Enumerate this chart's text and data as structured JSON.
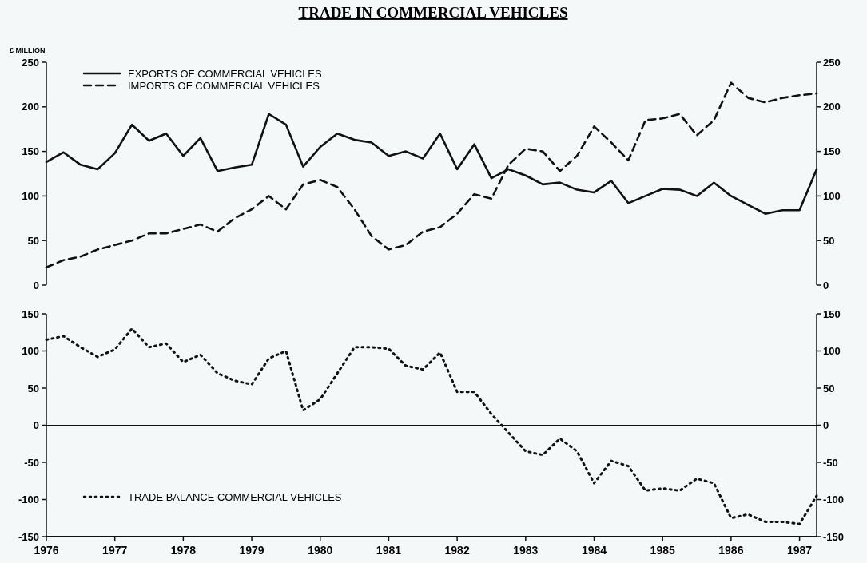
{
  "chart_data": [
    {
      "type": "line",
      "title": "TRADE IN COMMERCIAL VEHICLES",
      "ylabel": "£ MILLION",
      "x": [
        1976,
        1976.25,
        1976.5,
        1976.75,
        1977,
        1977.25,
        1977.5,
        1977.75,
        1978,
        1978.25,
        1978.5,
        1978.75,
        1979,
        1979.25,
        1979.5,
        1979.75,
        1980,
        1980.25,
        1980.5,
        1980.75,
        1981,
        1981.25,
        1981.5,
        1981.75,
        1982,
        1982.25,
        1982.5,
        1982.75,
        1983,
        1983.25,
        1983.5,
        1983.75,
        1984,
        1984.25,
        1984.5,
        1984.75,
        1985,
        1985.25,
        1985.5,
        1985.75,
        1986,
        1986.25,
        1986.5,
        1986.75,
        1987,
        1987.25
      ],
      "series": [
        {
          "name": "EXPORTS OF COMMERCIAL VEHICLES",
          "color": "#111111",
          "line_style": "solid",
          "values": [
            138,
            149,
            135,
            130,
            148,
            180,
            162,
            170,
            145,
            165,
            128,
            132,
            135,
            192,
            180,
            133,
            155,
            170,
            163,
            160,
            145,
            150,
            142,
            170,
            130,
            158,
            120,
            130,
            123,
            113,
            115,
            107,
            104,
            117,
            92,
            100,
            108,
            107,
            100,
            115,
            100,
            90,
            80,
            84,
            84,
            130
          ]
        },
        {
          "name": "IMPORTS OF COMMERCIAL VEHICLES",
          "color": "#111111",
          "line_style": "dashed",
          "values": [
            20,
            28,
            32,
            40,
            45,
            50,
            58,
            58,
            63,
            68,
            60,
            75,
            85,
            100,
            85,
            113,
            118,
            110,
            85,
            55,
            40,
            45,
            60,
            65,
            80,
            102,
            97,
            135,
            153,
            150,
            128,
            145,
            178,
            160,
            140,
            185,
            187,
            192,
            168,
            185,
            227,
            210,
            205,
            210,
            213,
            215
          ]
        }
      ],
      "xlim": [
        1976,
        1987.25
      ],
      "ylim": [
        0,
        250
      ],
      "yticks": [
        0,
        50,
        100,
        150,
        200,
        250
      ],
      "y2lim": [
        0,
        250
      ],
      "y2ticks": [
        0,
        50,
        100,
        150,
        200,
        250
      ],
      "tick_labels": "y",
      "legend": "top left",
      "grid": false
    },
    {
      "type": "line",
      "x": [
        1976,
        1976.25,
        1976.5,
        1976.75,
        1977,
        1977.25,
        1977.5,
        1977.75,
        1978,
        1978.25,
        1978.5,
        1978.75,
        1979,
        1979.25,
        1979.5,
        1979.75,
        1980,
        1980.25,
        1980.5,
        1980.75,
        1981,
        1981.25,
        1981.5,
        1981.75,
        1982,
        1982.25,
        1982.5,
        1982.75,
        1983,
        1983.25,
        1983.5,
        1983.75,
        1984,
        1984.25,
        1984.5,
        1984.75,
        1985,
        1985.25,
        1985.5,
        1985.75,
        1986,
        1986.25,
        1986.5,
        1986.75,
        1987,
        1987.25
      ],
      "series": [
        {
          "name": "TRADE BALANCE COMMERCIAL VEHICLES",
          "color": "#111111",
          "line_style": "dotted",
          "values": [
            115,
            120,
            105,
            92,
            102,
            130,
            105,
            110,
            85,
            95,
            70,
            60,
            55,
            90,
            100,
            20,
            35,
            70,
            105,
            105,
            103,
            80,
            75,
            98,
            45,
            45,
            15,
            -10,
            -35,
            -40,
            -18,
            -35,
            -78,
            -48,
            -55,
            -88,
            -85,
            -88,
            -72,
            -78,
            -125,
            -120,
            -130,
            -130,
            -133,
            -95
          ]
        }
      ],
      "xlim": [
        1976,
        1987.25
      ],
      "xticks": [
        1976,
        1977,
        1978,
        1979,
        1980,
        1981,
        1982,
        1983,
        1984,
        1985,
        1986,
        1987
      ],
      "ylim": [
        -150,
        150
      ],
      "yticks": [
        -150,
        -100,
        -50,
        0,
        50,
        100,
        150
      ],
      "y2lim": [
        -150,
        150
      ],
      "y2ticks": [
        -150,
        -100,
        -50,
        0,
        50,
        100,
        150
      ],
      "ref_lines": [
        {
          "axis": "y",
          "value": 0,
          "color": "#111111"
        }
      ],
      "legend": "bottom left",
      "grid": false
    }
  ]
}
